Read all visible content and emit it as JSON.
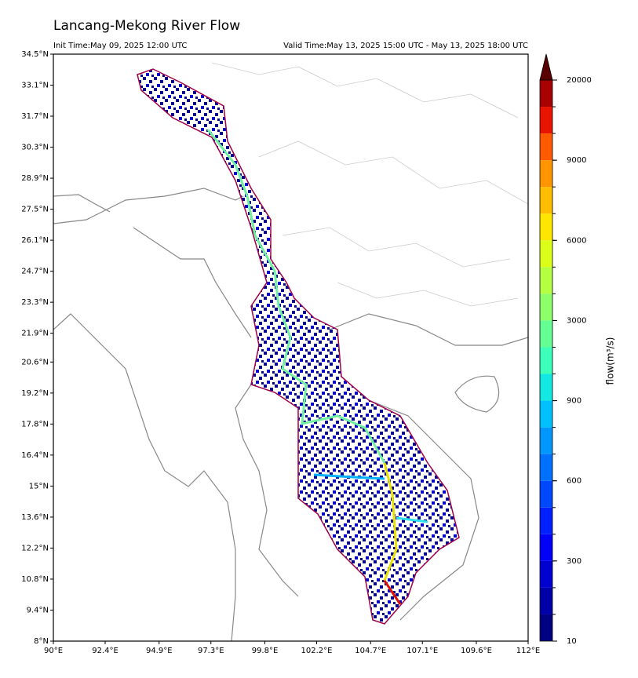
{
  "map": {
    "title": "Lancang-Mekong River Flow",
    "init_time": "Init Time:May 09, 2025 12:00 UTC",
    "valid_time": "Valid Time:May 13, 2025 15:00 UTC - May 13, 2025 18:00 UTC",
    "xlim": [
      90,
      112
    ],
    "ylim": [
      8,
      34.5
    ],
    "xticks": [
      {
        "value": 90,
        "label": "90°E"
      },
      {
        "value": 92.4,
        "label": "92.4°E"
      },
      {
        "value": 94.9,
        "label": "94.9°E"
      },
      {
        "value": 97.3,
        "label": "97.3°E"
      },
      {
        "value": 99.8,
        "label": "99.8°E"
      },
      {
        "value": 102.2,
        "label": "102.2°E"
      },
      {
        "value": 104.7,
        "label": "104.7°E"
      },
      {
        "value": 107.1,
        "label": "107.1°E"
      },
      {
        "value": 109.6,
        "label": "109.6°E"
      },
      {
        "value": 112,
        "label": "112°E"
      }
    ],
    "yticks": [
      {
        "value": 34.5,
        "label": "34.5°N"
      },
      {
        "value": 33.1,
        "label": "33.1°N"
      },
      {
        "value": 31.7,
        "label": "31.7°N"
      },
      {
        "value": 30.3,
        "label": "30.3°N"
      },
      {
        "value": 28.9,
        "label": "28.9°N"
      },
      {
        "value": 27.5,
        "label": "27.5°N"
      },
      {
        "value": 26.1,
        "label": "26.1°N"
      },
      {
        "value": 24.7,
        "label": "24.7°N"
      },
      {
        "value": 23.3,
        "label": "23.3°N"
      },
      {
        "value": 21.9,
        "label": "21.9°N"
      },
      {
        "value": 20.6,
        "label": "20.6°N"
      },
      {
        "value": 19.2,
        "label": "19.2°N"
      },
      {
        "value": 17.8,
        "label": "17.8°N"
      },
      {
        "value": 16.4,
        "label": "16.4°N"
      },
      {
        "value": 15,
        "label": "15°N"
      },
      {
        "value": 13.6,
        "label": "13.6°N"
      },
      {
        "value": 12.2,
        "label": "12.2°N"
      },
      {
        "value": 10.8,
        "label": "10.8°N"
      },
      {
        "value": 9.4,
        "label": "9.4°N"
      },
      {
        "value": 8,
        "label": "8°N"
      }
    ],
    "colorbar": {
      "label": "flow(m³/s)",
      "ticks": [
        10,
        300,
        600,
        900,
        3000,
        6000,
        9000,
        20000
      ],
      "colors": [
        "#000080",
        "#0000a8",
        "#0000d0",
        "#0000f8",
        "#0020ff",
        "#0048ff",
        "#0070ff",
        "#0098ff",
        "#00c0ff",
        "#14e8e2",
        "#3cffba",
        "#64ff92",
        "#8cff6a",
        "#b4ff42",
        "#dcff1a",
        "#ffe600",
        "#ffbe00",
        "#ff9600",
        "#ff5a00",
        "#e81400",
        "#a80000"
      ],
      "extend_color": "#5a0000"
    }
  }
}
